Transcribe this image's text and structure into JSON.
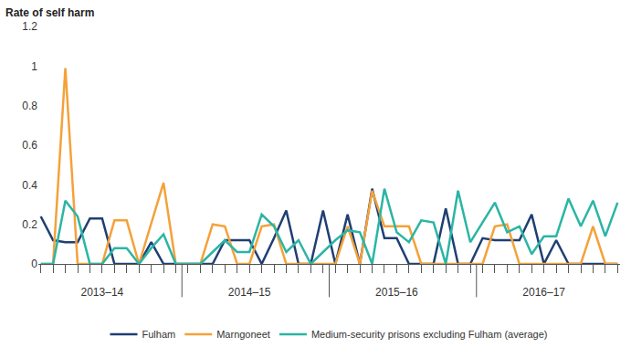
{
  "chart_data": {
    "type": "line",
    "y_label": "Rate of self harm",
    "categories": [
      null,
      null,
      null,
      null,
      null,
      "2013–14",
      null,
      null,
      null,
      null,
      null,
      null,
      null,
      null,
      null,
      null,
      null,
      "2014–15",
      null,
      null,
      null,
      null,
      null,
      null,
      null,
      null,
      null,
      null,
      null,
      "2015–16",
      null,
      null,
      null,
      null,
      null,
      null,
      null,
      null,
      null,
      null,
      null,
      "2016–17",
      null,
      null,
      null,
      null,
      null,
      null
    ],
    "series": [
      {
        "name": "Fulham",
        "color": "#1f3f73",
        "values": [
          0.24,
          0.12,
          0.11,
          0.11,
          0.23,
          0.23,
          0,
          0,
          0,
          0.11,
          0,
          0,
          0,
          0,
          0,
          0.12,
          0.12,
          0.12,
          0,
          0.13,
          0.27,
          0,
          0,
          0.27,
          0,
          0.25,
          0,
          0.38,
          0.13,
          0.13,
          0,
          0,
          0,
          0.28,
          0,
          0,
          0.13,
          0.12,
          0.12,
          0.12,
          0.25,
          0,
          0.12,
          0,
          0,
          0,
          0,
          0
        ]
      },
      {
        "name": "Marngoneet",
        "color": "#f5a13a",
        "values": [
          0,
          0,
          0.99,
          0,
          0,
          0,
          0.22,
          0.22,
          0,
          0.2,
          0.41,
          0,
          0,
          0,
          0.2,
          0.19,
          0,
          0,
          0.19,
          0.2,
          0,
          0,
          0,
          0,
          0,
          0.19,
          0,
          0.37,
          0.19,
          0.19,
          0.19,
          0,
          0,
          0,
          0,
          0,
          0,
          0.19,
          0.2,
          0,
          0,
          0,
          0,
          0,
          0,
          0.19,
          0,
          0
        ]
      },
      {
        "name": "Medium-security prisons excluding Fulham (average)",
        "color": "#2bb5a5",
        "values": [
          0,
          0,
          0.32,
          0.24,
          0,
          0,
          0.08,
          0.08,
          0,
          0.08,
          0.15,
          0,
          0,
          0,
          0.06,
          0.12,
          0.06,
          0.06,
          0.25,
          0.19,
          0.06,
          0.12,
          0,
          0.06,
          0.12,
          0.17,
          0.16,
          0,
          0.38,
          0.16,
          0.11,
          0.22,
          0.21,
          0,
          0.37,
          0.11,
          0.21,
          0.31,
          0.16,
          0.19,
          0.05,
          0.14,
          0.14,
          0.33,
          0.19,
          0.32,
          0.14,
          0.31
        ]
      }
    ],
    "ylim": [
      0,
      1.2
    ],
    "yticks": [
      0,
      0.2,
      0.4,
      0.6,
      0.8,
      1,
      1.2
    ],
    "grid": false,
    "legend": "bottom"
  }
}
